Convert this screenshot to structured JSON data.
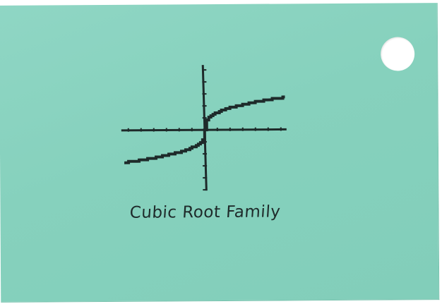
{
  "card": {
    "background_color": "#86d1bd",
    "ink_color": "#1e2a2a",
    "caption": "Cubic Root Family"
  },
  "graph": {
    "function": "cube root",
    "x_ticks_each_side": 6,
    "y_ticks_each_side": 5
  }
}
